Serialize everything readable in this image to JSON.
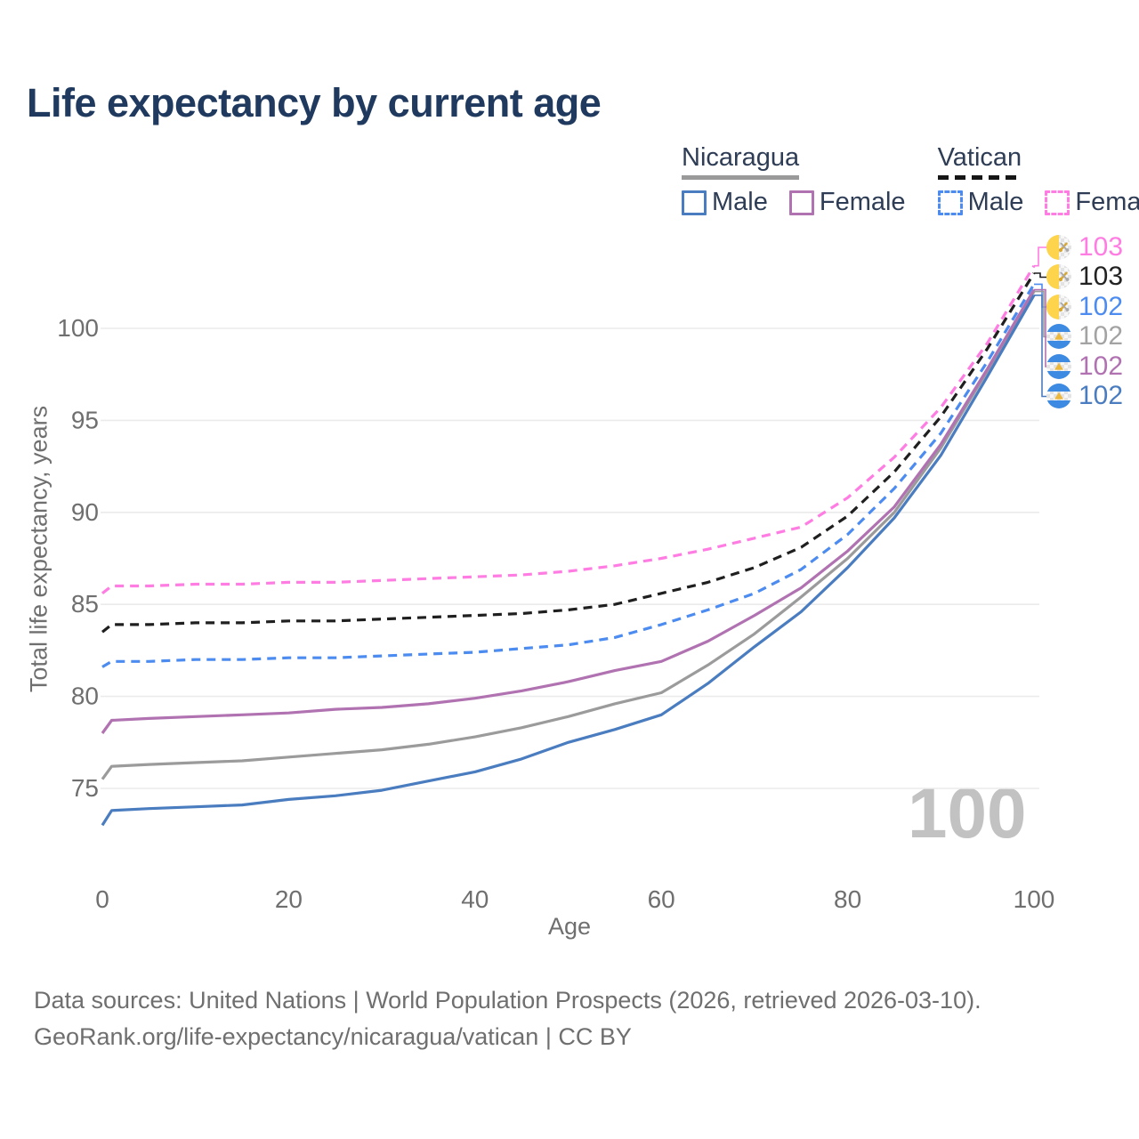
{
  "title": "Life expectancy by current age",
  "watermark": "100",
  "legend": {
    "groups": [
      {
        "name": "Nicaragua",
        "underline_style": "solid",
        "items": [
          {
            "label": "Male",
            "color": "#4a7cc0",
            "dash": false
          },
          {
            "label": "Female",
            "color": "#b172b1",
            "dash": false
          }
        ]
      },
      {
        "name": "Vatican",
        "underline_style": "dashed",
        "items": [
          {
            "label": "Male",
            "color": "#4c8bf0",
            "dash": true
          },
          {
            "label": "Female",
            "color": "#ff7de2",
            "dash": true
          }
        ]
      }
    ]
  },
  "axes": {
    "x": {
      "label": "Age",
      "ticks": [
        0,
        20,
        40,
        60,
        80,
        100
      ]
    },
    "y": {
      "label": "Total life expectancy, years",
      "ticks": [
        75,
        80,
        85,
        90,
        95,
        100
      ]
    }
  },
  "end_labels": [
    {
      "value": "103",
      "color": "#ff7de2",
      "flag": "vatican"
    },
    {
      "value": "103",
      "color": "#222222",
      "flag": "vatican"
    },
    {
      "value": "102",
      "color": "#4c8bf0",
      "flag": "vatican"
    },
    {
      "value": "102",
      "color": "#a3a3a3",
      "flag": "nicaragua"
    },
    {
      "value": "102",
      "color": "#b172b1",
      "flag": "nicaragua"
    },
    {
      "value": "102",
      "color": "#4a7cc0",
      "flag": "nicaragua"
    }
  ],
  "footer": {
    "line1": "Data sources: United Nations | World Population Prospects (2026, retrieved 2026-03-10).",
    "line2": "GeoRank.org/life-expectancy/nicaragua/vatican | CC BY"
  },
  "chart_data": {
    "type": "line",
    "title": "Life expectancy by current age",
    "xlabel": "Age",
    "ylabel": "Total life expectancy, years",
    "xlim": [
      0,
      100
    ],
    "ylim": [
      72,
      104
    ],
    "xticks": [
      0,
      20,
      40,
      60,
      80,
      100
    ],
    "yticks": [
      75,
      80,
      85,
      90,
      95,
      100
    ],
    "grid": "horizontal",
    "legend_position": "top-right",
    "x": [
      0,
      1,
      5,
      10,
      15,
      20,
      25,
      30,
      35,
      40,
      45,
      50,
      55,
      60,
      65,
      70,
      75,
      80,
      85,
      90,
      95,
      100
    ],
    "series": [
      {
        "name": "Vatican Female",
        "country": "Vatican",
        "sex": "Female",
        "color": "#ff7de2",
        "dash": true,
        "end_label": "103",
        "values": [
          85.6,
          86.0,
          86.0,
          86.1,
          86.1,
          86.2,
          86.2,
          86.3,
          86.4,
          86.5,
          86.6,
          86.8,
          87.1,
          87.5,
          88.0,
          88.6,
          89.2,
          90.8,
          93.0,
          95.7,
          99.2,
          103.4
        ]
      },
      {
        "name": "Vatican Both sexes",
        "country": "Vatican",
        "sex": "Both",
        "color": "#1f1f1f",
        "dash": true,
        "end_label": "103",
        "values": [
          83.5,
          83.9,
          83.9,
          84.0,
          84.0,
          84.1,
          84.1,
          84.2,
          84.3,
          84.4,
          84.5,
          84.7,
          85.0,
          85.6,
          86.2,
          87.0,
          88.1,
          89.8,
          92.2,
          95.2,
          98.9,
          103.0
        ]
      },
      {
        "name": "Vatican Male",
        "country": "Vatican",
        "sex": "Male",
        "color": "#4c8bf0",
        "dash": true,
        "end_label": "102",
        "values": [
          81.6,
          81.9,
          81.9,
          82.0,
          82.0,
          82.1,
          82.1,
          82.2,
          82.3,
          82.4,
          82.6,
          82.8,
          83.2,
          83.9,
          84.7,
          85.6,
          86.9,
          88.8,
          91.3,
          94.3,
          98.2,
          102.4
        ]
      },
      {
        "name": "Nicaragua Both sexes",
        "country": "Nicaragua",
        "sex": "Both",
        "color": "#9b9b9b",
        "dash": false,
        "end_label": "102",
        "values": [
          75.5,
          76.2,
          76.3,
          76.4,
          76.5,
          76.7,
          76.9,
          77.1,
          77.4,
          77.8,
          78.3,
          78.9,
          79.6,
          80.2,
          81.7,
          83.4,
          85.4,
          87.5,
          90.0,
          93.5,
          97.7,
          102.0
        ]
      },
      {
        "name": "Nicaragua Female",
        "country": "Nicaragua",
        "sex": "Female",
        "color": "#b172b1",
        "dash": false,
        "end_label": "102",
        "values": [
          78.0,
          78.7,
          78.8,
          78.9,
          79.0,
          79.1,
          79.3,
          79.4,
          79.6,
          79.9,
          80.3,
          80.8,
          81.4,
          81.9,
          83.0,
          84.4,
          85.9,
          87.9,
          90.3,
          93.7,
          97.8,
          102.1
        ]
      },
      {
        "name": "Nicaragua Male",
        "country": "Nicaragua",
        "sex": "Male",
        "color": "#4a7cc0",
        "dash": false,
        "end_label": "102",
        "values": [
          73.0,
          73.8,
          73.9,
          74.0,
          74.1,
          74.4,
          74.6,
          74.9,
          75.4,
          75.9,
          76.6,
          77.5,
          78.2,
          79.0,
          80.7,
          82.7,
          84.6,
          87.0,
          89.7,
          93.1,
          97.4,
          101.8
        ]
      }
    ]
  }
}
